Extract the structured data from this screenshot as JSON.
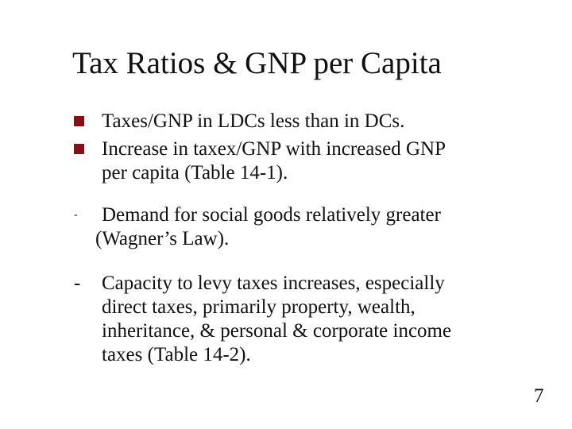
{
  "slide": {
    "title": "Tax Ratios & GNP per Capita",
    "bullets": [
      {
        "marker": "square",
        "lines": [
          "Taxes/GNP in LDCs less than in DCs."
        ]
      },
      {
        "marker": "square",
        "lines": [
          "Increase in taxex/GNP with increased GNP",
          "per capita (Table 14-1)."
        ]
      },
      {
        "marker": "-",
        "lines": [
          "Demand for social goods relatively greater",
          "(Wagner’s Law)."
        ]
      },
      {
        "marker": "-",
        "lines": [
          "Capacity to levy taxes increases, especially",
          "direct taxes, primarily property, wealth,",
          "inheritance, & personal & corporate income",
          "taxes (Table 14-2)."
        ]
      }
    ],
    "page_number": "7",
    "colors": {
      "bullet_square": "#8b0e17",
      "text": "#111111",
      "background": "#ffffff"
    }
  }
}
